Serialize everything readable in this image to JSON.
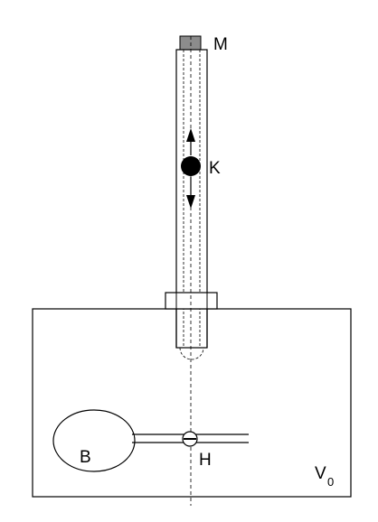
{
  "labels": {
    "magnet": "M",
    "ball": "K",
    "bulb": "B",
    "tap": "H",
    "volume_main": "V",
    "volume_sub": "0"
  },
  "colors": {
    "magnet_fill": "#8c8c8c",
    "ball_fill": "#000000",
    "line": "#000000"
  }
}
